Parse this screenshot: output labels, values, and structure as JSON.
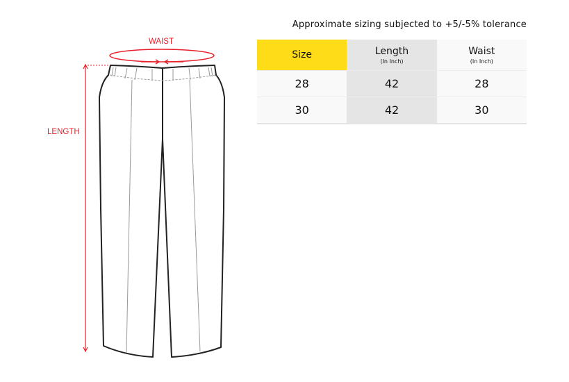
{
  "note": "Approximate sizing subjected to +5/-5% tolerance",
  "table": {
    "headers": [
      {
        "label": "Size",
        "sub": ""
      },
      {
        "label": "Length",
        "sub": "(In Inch)"
      },
      {
        "label": "Waist",
        "sub": "(In Inch)"
      }
    ],
    "rows": [
      [
        "28",
        "42",
        "28"
      ],
      [
        "30",
        "42",
        "30"
      ]
    ]
  },
  "diagram": {
    "waist_label": "WAIST",
    "length_label": "LENGTH",
    "measure_color": "#e8202a",
    "header_highlight": "#fedc17"
  }
}
